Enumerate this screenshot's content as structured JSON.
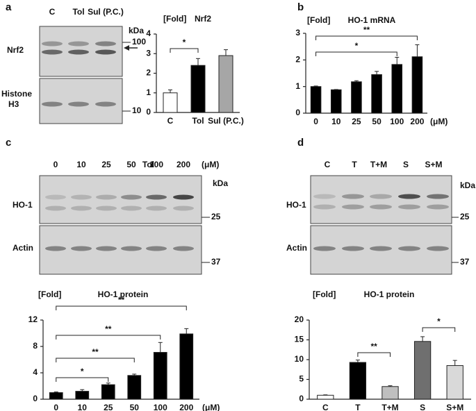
{
  "panels": {
    "a": "a",
    "b": "b",
    "c": "c",
    "d": "d"
  },
  "blots": {
    "a": {
      "lanes": [
        "C",
        "Tol",
        "Sul (P.C.)"
      ],
      "rows": [
        "Nrf2",
        "Histone",
        "H3"
      ],
      "unit": "kDa",
      "markers": [
        "100",
        "10"
      ]
    },
    "c": {
      "treatment": "Tol",
      "lanes": [
        "0",
        "10",
        "25",
        "50",
        "100",
        "200"
      ],
      "lane_unit": "(μM)",
      "rows": [
        "HO-1",
        "Actin"
      ],
      "unit": "kDa",
      "markers": [
        "25",
        "37"
      ]
    },
    "d": {
      "lanes": [
        "C",
        "T",
        "T+M",
        "S",
        "S+M"
      ],
      "rows": [
        "HO-1",
        "Actin"
      ],
      "unit": "kDa",
      "markers": [
        "25",
        "37"
      ]
    }
  },
  "chart_data": [
    {
      "type": "bar",
      "title": "Nrf2",
      "y_label": "[Fold]",
      "categories": [
        "C",
        "Tol",
        "Sul (P.C.)"
      ],
      "values": [
        1.0,
        2.4,
        2.9
      ],
      "errors": [
        0.15,
        0.35,
        0.3
      ],
      "colors": [
        "#ffffff",
        "#000000",
        "#a6a6a6"
      ],
      "ylim": [
        0,
        4
      ],
      "yticks": [
        0,
        1,
        2,
        3,
        4
      ],
      "annotations": [
        {
          "label": "*",
          "from": 0,
          "to": 1
        }
      ]
    },
    {
      "type": "bar",
      "title": "HO-1 mRNA",
      "y_label": "[Fold]",
      "x_label": "(μM)",
      "categories": [
        "0",
        "10",
        "25",
        "50",
        "100",
        "200"
      ],
      "values": [
        1.0,
        0.88,
        1.18,
        1.45,
        1.83,
        2.12
      ],
      "errors": [
        0.02,
        0.01,
        0.04,
        0.12,
        0.27,
        0.45
      ],
      "colors": [
        "#000000",
        "#000000",
        "#000000",
        "#000000",
        "#000000",
        "#000000"
      ],
      "ylim": [
        0,
        3
      ],
      "yticks": [
        0,
        1,
        2,
        3
      ],
      "annotations": [
        {
          "label": "**",
          "from": 0,
          "to": 5
        },
        {
          "label": "*",
          "from": 0,
          "to": 4
        }
      ]
    },
    {
      "type": "bar",
      "title": "HO-1 protein",
      "y_label": "[Fold]",
      "x_label": "(μM)",
      "categories": [
        "0",
        "10",
        "25",
        "50",
        "100",
        "200"
      ],
      "values": [
        1.0,
        1.2,
        2.2,
        3.6,
        7.1,
        9.9
      ],
      "errors": [
        0.1,
        0.25,
        0.25,
        0.2,
        1.5,
        0.8
      ],
      "colors": [
        "#000000",
        "#000000",
        "#000000",
        "#000000",
        "#000000",
        "#000000"
      ],
      "ylim": [
        0,
        12
      ],
      "yticks": [
        0,
        4,
        8,
        12
      ],
      "annotations": [
        {
          "label": "*",
          "from": 0,
          "to": 2
        },
        {
          "label": "**",
          "from": 0,
          "to": 3
        },
        {
          "label": "**",
          "from": 0,
          "to": 4
        },
        {
          "label": "**",
          "from": 0,
          "to": 5
        }
      ]
    },
    {
      "type": "bar",
      "title": "HO-1 protein",
      "y_label": "[Fold]",
      "categories": [
        "C",
        "T",
        "T+M",
        "S",
        "S+M"
      ],
      "values": [
        1.0,
        9.3,
        3.2,
        14.6,
        8.5
      ],
      "errors": [
        0.1,
        0.6,
        0.2,
        1.2,
        1.3
      ],
      "colors": [
        "#ffffff",
        "#000000",
        "#bfbfbf",
        "#6f6f6f",
        "#d9d9d9"
      ],
      "ylim": [
        0,
        20
      ],
      "yticks": [
        0,
        5,
        10,
        15,
        20
      ],
      "annotations": [
        {
          "label": "**",
          "from": 1,
          "to": 2
        },
        {
          "label": "*",
          "from": 3,
          "to": 4
        }
      ]
    }
  ]
}
